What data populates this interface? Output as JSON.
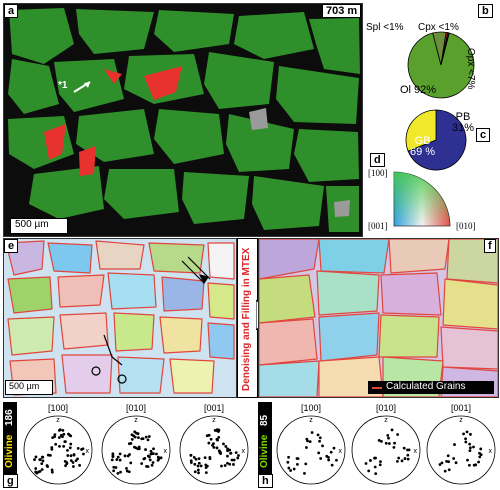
{
  "panels": {
    "a": {
      "label": "a",
      "depth": "703 m",
      "scale": "500 µm",
      "grain_label": "*1"
    },
    "b": {
      "label": "b",
      "slices": [
        {
          "name": "Ol 92%",
          "value": 92,
          "color": "#5aa02c"
        },
        {
          "name": "Opx <7%",
          "value": 6.5,
          "color": "#6b8e3a"
        },
        {
          "name": "Cpx <1%",
          "value": 0.8,
          "color": "#e8322e"
        },
        {
          "name": "Spl <1%",
          "value": 0.7,
          "color": "#222222"
        }
      ]
    },
    "c": {
      "label": "c",
      "slices": [
        {
          "name": "GB\n69 %",
          "value": 69,
          "color": "#2e3192"
        },
        {
          "name": "PB\n31%",
          "value": 31,
          "color": "#f0e92b"
        }
      ]
    },
    "d": {
      "label": "d",
      "corners": [
        "[100]",
        "[001]",
        "[010]"
      ]
    },
    "e": {
      "label": "e",
      "scale": "500 µm",
      "banner": "Denoising and Filling in MTEX"
    },
    "f": {
      "label": "f",
      "legend": "Calculated Grains"
    },
    "g": {
      "label": "g",
      "mineral": "Olivine",
      "count": "186",
      "axes": [
        "[100]",
        "[010]",
        "[001]"
      ],
      "z": "z",
      "x": "x"
    },
    "h": {
      "label": "h",
      "mineral": "Olivine",
      "count": "85",
      "axes": [
        "[100]",
        "[010]",
        "[001]"
      ],
      "z": "z",
      "x": "x"
    }
  },
  "colors": {
    "olivine_green": "#2f8f2a",
    "cpx_red": "#e8322e",
    "gb_blue": "#2e3192",
    "pb_yellow": "#f0e92b",
    "grain_boundary": "#e0463e"
  }
}
